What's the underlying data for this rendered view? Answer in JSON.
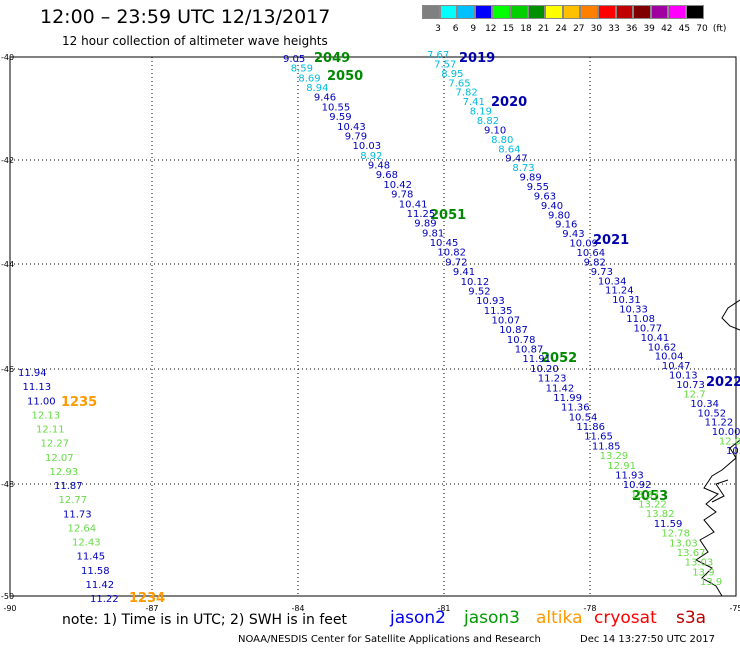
{
  "header": {
    "title": "12:00 – 23:59 UTC 12/13/2017",
    "subtitle": "12 hour collection of altimeter wave heights"
  },
  "colorbar": {
    "labels": [
      "3",
      "6",
      "9",
      "12",
      "15",
      "18",
      "21",
      "24",
      "27",
      "30",
      "33",
      "36",
      "39",
      "42",
      "45",
      "70",
      "(ft)"
    ],
    "colors": [
      "#808080",
      "#00ffff",
      "#00c0ff",
      "#0000ff",
      "#00ff00",
      "#00d000",
      "#009000",
      "#ffff00",
      "#ffc000",
      "#ff8000",
      "#ff0000",
      "#c00000",
      "#800000",
      "#a000a0",
      "#ff00ff",
      "#000000"
    ]
  },
  "axes": {
    "lat_labels": [
      "-40",
      "-42",
      "-44",
      "-46",
      "-48",
      "-50"
    ],
    "lon_labels": [
      "-90",
      "-87",
      "-84",
      "-81",
      "-78",
      "-75"
    ]
  },
  "orbits": [
    {
      "id": "2049",
      "color": "#008800"
    },
    {
      "id": "2050",
      "color": "#008800"
    },
    {
      "id": "2019",
      "color": "#0000aa"
    },
    {
      "id": "2020",
      "color": "#0000aa"
    },
    {
      "id": "2051",
      "color": "#008800"
    },
    {
      "id": "2021",
      "color": "#0000aa"
    },
    {
      "id": "2052",
      "color": "#008800"
    },
    {
      "id": "2022",
      "color": "#0000aa"
    },
    {
      "id": "2053",
      "color": "#008800"
    },
    {
      "id": "1235",
      "color": "#ff9900"
    },
    {
      "id": "1234",
      "color": "#ff9900"
    }
  ],
  "tracks": [
    {
      "name": "2049-2050",
      "color": "#0000aa",
      "values": [
        "9.05",
        "8.59",
        "8.69",
        "8.94",
        "9.46",
        "10.55",
        "9.59",
        "10.43",
        "9.79",
        "10.03",
        "8.92",
        "9.48",
        "9.68",
        "10.42",
        "9.78",
        "10.41",
        "11.25",
        "9.89",
        "9.81",
        "10.45",
        "10.82",
        "9.72",
        "9.41",
        "10.12",
        "9.52",
        "10.93",
        "11.35",
        "10.07",
        "10.87",
        "10.78",
        "10.87",
        "11.91",
        "10.20",
        "11.23",
        "11.42",
        "11.99",
        "11.36",
        "10.54",
        "11.86",
        "11.65",
        "11.85",
        "13.29",
        "12.91",
        "11.93",
        "10.92",
        "13.37",
        "13.22",
        "13.82",
        "11.59",
        "12.78",
        "13.03",
        "13.67",
        "13.03",
        "13.9",
        "13.9"
      ]
    },
    {
      "name": "2019-2022",
      "color": "#0000aa",
      "values": [
        "7.67",
        "7.57",
        "8.95",
        "7.65",
        "7.82",
        "7.41",
        "8.19",
        "8.82",
        "9.10",
        "8.80",
        "8.64",
        "9.47",
        "8.73",
        "9.89",
        "9.55",
        "9.63",
        "9.40",
        "9.80",
        "9.16",
        "9.43",
        "10.09",
        "10.64",
        "9.82",
        "9.73",
        "10.34",
        "11.24",
        "10.31",
        "10.33",
        "11.08",
        "10.77",
        "10.41",
        "10.62",
        "10.04",
        "10.47",
        "10.13",
        "10.73",
        "12.7",
        "10.34",
        "10.52",
        "11.22",
        "10.00",
        "12.0",
        "10."
      ]
    },
    {
      "name": "1234-1235",
      "color": "#00aa00",
      "values": [
        "11.94",
        "11.13",
        "11.00",
        "12.13",
        "12.11",
        "12.27",
        "12.07",
        "12.93",
        "11.87",
        "12.77",
        "11.73",
        "12.64",
        "12.43",
        "11.45",
        "11.58",
        "11.42",
        "11.22"
      ]
    }
  ],
  "legend": [
    {
      "label": "jason2",
      "color": "#0000ee"
    },
    {
      "label": "jason3",
      "color": "#009900"
    },
    {
      "label": "altika",
      "color": "#ff9900"
    },
    {
      "label": "cryosat",
      "color": "#ff0000"
    },
    {
      "label": "s3a",
      "color": "#bb0000"
    }
  ],
  "footer": {
    "note": "note:  1) Time is in UTC;  2) SWH is in feet",
    "credit": "NOAA/NESDIS Center for Satellite Applications and Research",
    "stamp": "Dec 14 13:27:50 UTC 2017"
  }
}
